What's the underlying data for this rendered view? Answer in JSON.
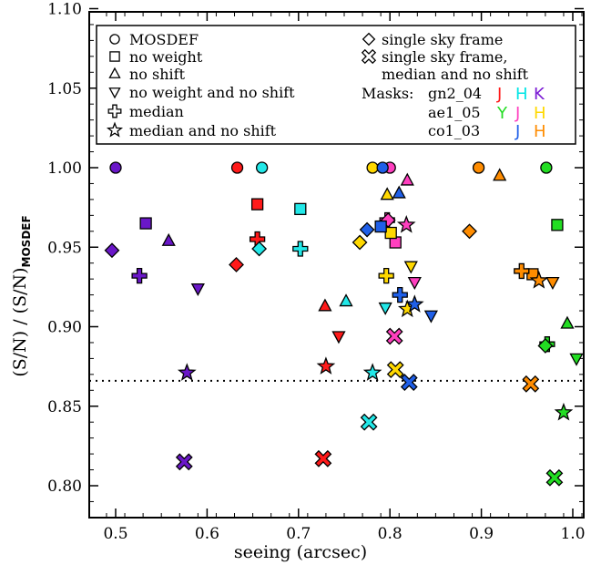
{
  "chart_data": {
    "type": "scatter",
    "xlabel": "seeing (arcsec)",
    "ylabel_main": "(S/N) / (S/N)",
    "ylabel_sub": "MOSDEF",
    "xlim": [
      0.47,
      1.03
    ],
    "ylim": [
      0.78,
      1.1
    ],
    "xticks": [
      0.5,
      0.6,
      0.7,
      0.8,
      0.9,
      1.0
    ],
    "yticks": [
      0.8,
      0.85,
      0.9,
      0.95,
      1.0,
      1.05,
      1.1
    ],
    "xtick_labels": [
      "0.5",
      "0.6",
      "0.7",
      "0.8",
      "0.9",
      "1.0"
    ],
    "ytick_labels": [
      "0.80",
      "0.85",
      "0.90",
      "0.95",
      "1.00",
      "1.05",
      "1.10"
    ],
    "reference_line": {
      "y": 0.866,
      "style": "dotted"
    },
    "grid": false,
    "legend_position": "top",
    "legend": {
      "methods": [
        {
          "symbol": "circle",
          "label": "MOSDEF"
        },
        {
          "symbol": "square",
          "label": "no weight"
        },
        {
          "symbol": "triangle-up",
          "label": "no shift"
        },
        {
          "symbol": "triangle-down",
          "label": "no weight and no shift"
        },
        {
          "symbol": "cross",
          "label": "median"
        },
        {
          "symbol": "star",
          "label": "median and no shift"
        },
        {
          "symbol": "diamond",
          "label": "single sky frame"
        },
        {
          "symbol": "x",
          "label": "single sky frame,"
        }
      ],
      "x_label_cont": "median and no shift",
      "masks_title": "Masks:",
      "masks": [
        {
          "name": "gn2_04",
          "bands": [
            {
              "b": "J",
              "color": "#ff1a1a"
            },
            {
              "b": "H",
              "color": "#00e5e5"
            },
            {
              "b": "K",
              "color": "#7a1ad4"
            }
          ]
        },
        {
          "name": "ae1_05",
          "bands": [
            {
              "b": "Y",
              "color": "#22dd22"
            },
            {
              "b": "J",
              "color": "#ff3fbf"
            },
            {
              "b": "H",
              "color": "#ffd800"
            }
          ]
        },
        {
          "name": "co1_03",
          "bands": [
            {
              "b": "J",
              "color": "#1f5fe8"
            },
            {
              "b": "H",
              "color": "#ff8c00"
            }
          ]
        }
      ]
    },
    "colors": {
      "gn2_04_J": "#ff1a1a",
      "gn2_04_H": "#22e8e8",
      "gn2_04_K": "#6a17c8",
      "ae1_05_Y": "#22dd22",
      "ae1_05_J": "#ff3fbf",
      "ae1_05_H": "#ffd800",
      "co1_03_J": "#1f5fe8",
      "co1_03_H": "#ff8c00"
    },
    "series": [
      {
        "mask": "gn2_04",
        "band": "J",
        "color": "#ff1a1a",
        "points": [
          {
            "m": "circle",
            "x": 0.633,
            "y": 1.0
          },
          {
            "m": "square",
            "x": 0.655,
            "y": 0.977
          },
          {
            "m": "triangle-up",
            "x": 0.729,
            "y": 0.913
          },
          {
            "m": "triangle-down",
            "x": 0.744,
            "y": 0.894
          },
          {
            "m": "cross",
            "x": 0.655,
            "y": 0.955
          },
          {
            "m": "star",
            "x": 0.73,
            "y": 0.875
          },
          {
            "m": "diamond",
            "x": 0.632,
            "y": 0.939
          },
          {
            "m": "x",
            "x": 0.727,
            "y": 0.817
          }
        ]
      },
      {
        "mask": "gn2_04",
        "band": "H",
        "color": "#22e8e8",
        "points": [
          {
            "m": "circle",
            "x": 0.66,
            "y": 1.0
          },
          {
            "m": "square",
            "x": 0.702,
            "y": 0.974
          },
          {
            "m": "triangle-up",
            "x": 0.752,
            "y": 0.916
          },
          {
            "m": "triangle-down",
            "x": 0.795,
            "y": 0.912
          },
          {
            "m": "cross",
            "x": 0.702,
            "y": 0.949
          },
          {
            "m": "star",
            "x": 0.781,
            "y": 0.871
          },
          {
            "m": "diamond",
            "x": 0.657,
            "y": 0.949
          },
          {
            "m": "x",
            "x": 0.777,
            "y": 0.84
          }
        ]
      },
      {
        "mask": "gn2_04",
        "band": "K",
        "color": "#6a17c8",
        "points": [
          {
            "m": "circle",
            "x": 0.5,
            "y": 1.0
          },
          {
            "m": "square",
            "x": 0.533,
            "y": 0.965
          },
          {
            "m": "triangle-up",
            "x": 0.558,
            "y": 0.954
          },
          {
            "m": "triangle-down",
            "x": 0.59,
            "y": 0.924
          },
          {
            "m": "cross",
            "x": 0.526,
            "y": 0.932
          },
          {
            "m": "star",
            "x": 0.578,
            "y": 0.871
          },
          {
            "m": "diamond",
            "x": 0.496,
            "y": 0.948
          },
          {
            "m": "x",
            "x": 0.575,
            "y": 0.815
          }
        ]
      },
      {
        "mask": "ae1_05",
        "band": "Y",
        "color": "#22dd22",
        "points": [
          {
            "m": "circle",
            "x": 0.971,
            "y": 1.0
          },
          {
            "m": "square",
            "x": 0.983,
            "y": 0.964
          },
          {
            "m": "triangle-up",
            "x": 0.994,
            "y": 0.902
          },
          {
            "m": "triangle-down",
            "x": 1.004,
            "y": 0.88
          },
          {
            "m": "cross",
            "x": 0.972,
            "y": 0.889
          },
          {
            "m": "star",
            "x": 0.99,
            "y": 0.846
          },
          {
            "m": "diamond",
            "x": 0.97,
            "y": 0.888
          },
          {
            "m": "x",
            "x": 0.98,
            "y": 0.805
          }
        ]
      },
      {
        "mask": "ae1_05",
        "band": "J",
        "color": "#ff3fbf",
        "points": [
          {
            "m": "circle",
            "x": 0.8,
            "y": 1.0
          },
          {
            "m": "square",
            "x": 0.806,
            "y": 0.953
          },
          {
            "m": "triangle-up",
            "x": 0.819,
            "y": 0.992
          },
          {
            "m": "triangle-down",
            "x": 0.827,
            "y": 0.928
          },
          {
            "m": "cross",
            "x": 0.797,
            "y": 0.967
          },
          {
            "m": "star",
            "x": 0.818,
            "y": 0.964
          },
          {
            "m": "diamond",
            "x": 0.798,
            "y": 0.967
          },
          {
            "m": "x",
            "x": 0.805,
            "y": 0.894
          }
        ]
      },
      {
        "mask": "ae1_05",
        "band": "H",
        "color": "#ffd800",
        "points": [
          {
            "m": "circle",
            "x": 0.781,
            "y": 1.0
          },
          {
            "m": "square",
            "x": 0.801,
            "y": 0.959
          },
          {
            "m": "triangle-up",
            "x": 0.797,
            "y": 0.983
          },
          {
            "m": "triangle-down",
            "x": 0.823,
            "y": 0.938
          },
          {
            "m": "cross",
            "x": 0.796,
            "y": 0.932
          },
          {
            "m": "star",
            "x": 0.819,
            "y": 0.911
          },
          {
            "m": "diamond",
            "x": 0.767,
            "y": 0.953
          },
          {
            "m": "x",
            "x": 0.806,
            "y": 0.873
          }
        ]
      },
      {
        "mask": "co1_03",
        "band": "J",
        "color": "#1f5fe8",
        "points": [
          {
            "m": "circle",
            "x": 0.792,
            "y": 1.0
          },
          {
            "m": "square",
            "x": 0.79,
            "y": 0.963
          },
          {
            "m": "triangle-up",
            "x": 0.81,
            "y": 0.984
          },
          {
            "m": "triangle-down",
            "x": 0.845,
            "y": 0.907
          },
          {
            "m": "cross",
            "x": 0.811,
            "y": 0.92
          },
          {
            "m": "star",
            "x": 0.827,
            "y": 0.914
          },
          {
            "m": "diamond",
            "x": 0.775,
            "y": 0.961
          },
          {
            "m": "x",
            "x": 0.821,
            "y": 0.865
          }
        ]
      },
      {
        "mask": "co1_03",
        "band": "H",
        "color": "#ff8c00",
        "points": [
          {
            "m": "circle",
            "x": 0.897,
            "y": 1.0
          },
          {
            "m": "square",
            "x": 0.956,
            "y": 0.933
          },
          {
            "m": "triangle-up",
            "x": 0.92,
            "y": 0.995
          },
          {
            "m": "triangle-down",
            "x": 0.978,
            "y": 0.928
          },
          {
            "m": "cross",
            "x": 0.944,
            "y": 0.935
          },
          {
            "m": "star",
            "x": 0.963,
            "y": 0.929
          },
          {
            "m": "diamond",
            "x": 0.887,
            "y": 0.96
          },
          {
            "m": "x",
            "x": 0.954,
            "y": 0.864
          }
        ]
      }
    ]
  }
}
